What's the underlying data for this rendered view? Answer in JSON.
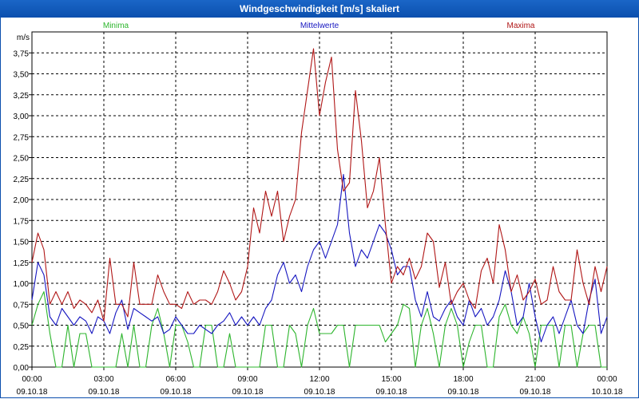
{
  "window": {
    "title": "Windgeschwindigkeit [m/s] skaliert"
  },
  "chart_data": {
    "type": "line",
    "title": "Windgeschwindigkeit [m/s] skaliert",
    "ylabel": "m/s",
    "ylim": [
      0,
      4
    ],
    "yticks": [
      "0,00",
      "0,25",
      "0,50",
      "0,75",
      "1,00",
      "1,25",
      "1,50",
      "1,75",
      "2,00",
      "2,25",
      "2,50",
      "2,75",
      "3,00",
      "3,25",
      "3,50",
      "3,75"
    ],
    "xticks": [
      {
        "time": "00:00",
        "date": "09.10.18"
      },
      {
        "time": "03:00",
        "date": "09.10.18"
      },
      {
        "time": "06:00",
        "date": "09.10.18"
      },
      {
        "time": "09:00",
        "date": "09.10.18"
      },
      {
        "time": "12:00",
        "date": "09.10.18"
      },
      {
        "time": "15:00",
        "date": "09.10.18"
      },
      {
        "time": "18:00",
        "date": "09.10.18"
      },
      {
        "time": "21:00",
        "date": "09.10.18"
      },
      {
        "time": "00:00",
        "date": "10.10.18"
      }
    ],
    "grid": true,
    "x_hours": [
      0,
      0.25,
      0.5,
      0.75,
      1,
      1.25,
      1.5,
      1.75,
      2,
      2.25,
      2.5,
      2.75,
      3,
      3.25,
      3.5,
      3.75,
      4,
      4.25,
      4.5,
      4.75,
      5,
      5.25,
      5.5,
      5.75,
      6,
      6.25,
      6.5,
      6.75,
      7,
      7.25,
      7.5,
      7.75,
      8,
      8.25,
      8.5,
      8.75,
      9,
      9.25,
      9.5,
      9.75,
      10,
      10.25,
      10.5,
      10.75,
      11,
      11.25,
      11.5,
      11.75,
      12,
      12.25,
      12.5,
      12.75,
      13,
      13.25,
      13.5,
      13.75,
      14,
      14.25,
      14.5,
      14.75,
      15,
      15.25,
      15.5,
      15.75,
      16,
      16.25,
      16.5,
      16.75,
      17,
      17.25,
      17.5,
      17.75,
      18,
      18.25,
      18.5,
      18.75,
      19,
      19.25,
      19.5,
      19.75,
      20,
      20.25,
      20.5,
      20.75,
      21,
      21.25,
      21.5,
      21.75,
      22,
      22.25,
      22.5,
      22.75,
      23,
      23.25,
      23.5,
      23.75,
      24
    ],
    "series": [
      {
        "name": "Minima",
        "color": "#2db52d",
        "values": [
          0.5,
          0.75,
          0.9,
          0.4,
          0.0,
          0.0,
          0.5,
          0.0,
          0.4,
          0.4,
          0.0,
          0.0,
          0.0,
          0.0,
          0.0,
          0.4,
          0.0,
          0.5,
          0.0,
          0.0,
          0.5,
          0.7,
          0.4,
          0.0,
          0.5,
          0.5,
          0.3,
          0.0,
          0.0,
          0.5,
          0.5,
          0.0,
          0.0,
          0.4,
          0.0,
          0.0,
          0.0,
          0.0,
          0.0,
          0.5,
          0.5,
          0.0,
          0.0,
          0.5,
          0.4,
          0.0,
          0.5,
          0.7,
          0.4,
          0.4,
          0.4,
          0.5,
          0.5,
          0.0,
          0.5,
          0.5,
          0.5,
          0.5,
          0.5,
          0.3,
          0.4,
          0.5,
          0.75,
          0.7,
          0.0,
          0.5,
          0.7,
          0.4,
          0.0,
          0.5,
          0.7,
          0.5,
          0.0,
          0.3,
          0.5,
          0.5,
          0.0,
          0.0,
          0.6,
          0.75,
          0.5,
          0.4,
          0.6,
          0.4,
          0.0,
          0.5,
          0.5,
          0.5,
          0.0,
          0.5,
          0.5,
          0.0,
          0.4,
          0.5,
          0.5,
          0.0,
          0.0
        ]
      },
      {
        "name": "Mittelwerte",
        "color": "#1616c0",
        "values": [
          0.8,
          1.25,
          1.1,
          0.6,
          0.5,
          0.7,
          0.6,
          0.5,
          0.6,
          0.55,
          0.4,
          0.6,
          0.55,
          0.4,
          0.65,
          0.8,
          0.45,
          0.7,
          0.65,
          0.6,
          0.55,
          0.6,
          0.4,
          0.45,
          0.6,
          0.5,
          0.4,
          0.4,
          0.5,
          0.45,
          0.4,
          0.5,
          0.55,
          0.65,
          0.5,
          0.6,
          0.5,
          0.6,
          0.5,
          0.7,
          0.8,
          1.1,
          1.25,
          1.0,
          1.1,
          0.9,
          1.2,
          1.4,
          1.5,
          1.3,
          1.5,
          1.7,
          2.3,
          1.6,
          1.2,
          1.4,
          1.3,
          1.5,
          1.7,
          1.6,
          1.4,
          1.1,
          1.2,
          1.2,
          0.8,
          0.6,
          0.9,
          0.6,
          0.55,
          0.7,
          0.8,
          0.6,
          0.5,
          0.8,
          0.6,
          0.7,
          0.5,
          0.6,
          0.8,
          1.15,
          0.9,
          0.5,
          0.6,
          1.0,
          0.6,
          0.3,
          0.5,
          0.6,
          0.4,
          0.6,
          0.8,
          0.5,
          0.4,
          0.8,
          1.05,
          0.4,
          0.6
        ]
      },
      {
        "name": "Maxima",
        "color": "#b01616",
        "values": [
          1.25,
          1.6,
          1.4,
          0.75,
          0.9,
          0.75,
          0.9,
          0.7,
          0.8,
          0.75,
          0.65,
          0.8,
          0.55,
          1.3,
          0.75,
          0.75,
          0.6,
          1.25,
          0.75,
          0.75,
          0.75,
          1.1,
          0.9,
          0.75,
          0.75,
          0.7,
          0.9,
          0.75,
          0.8,
          0.8,
          0.75,
          0.9,
          1.15,
          1.0,
          0.8,
          0.9,
          1.2,
          1.9,
          1.6,
          2.1,
          1.8,
          2.1,
          1.5,
          1.8,
          2.0,
          2.8,
          3.3,
          3.8,
          3.0,
          3.4,
          3.7,
          2.6,
          2.1,
          2.2,
          3.3,
          2.7,
          1.9,
          2.1,
          2.5,
          1.7,
          1.0,
          1.2,
          1.1,
          1.3,
          1.05,
          1.2,
          1.6,
          1.5,
          0.95,
          1.25,
          0.75,
          0.9,
          1.0,
          0.8,
          0.7,
          1.15,
          1.3,
          1.0,
          1.7,
          1.4,
          0.9,
          1.1,
          0.8,
          0.9,
          1.05,
          0.75,
          0.8,
          1.2,
          0.9,
          0.8,
          0.8,
          1.4,
          1.0,
          0.75,
          1.2,
          0.9,
          1.2
        ]
      }
    ]
  }
}
